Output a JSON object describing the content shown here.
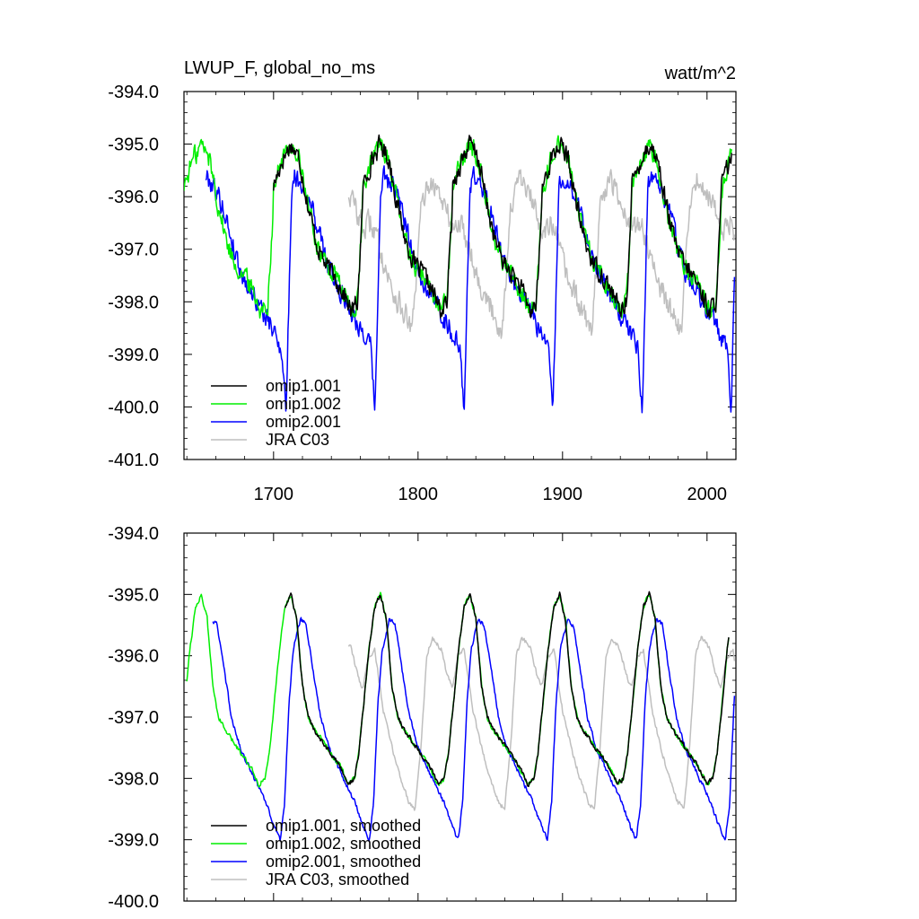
{
  "figure": {
    "title_left": "LWUP_F, global_no_ms",
    "title_right": "watt/m^2"
  },
  "colors": {
    "omip1.001": "#000000",
    "omip1.002": "#00ee00",
    "omip2.001": "#0000ff",
    "JRA C03": "#bfbfbf"
  },
  "chart_data": [
    {
      "type": "line",
      "panel": "top",
      "title": "LWUP_F, global_no_ms",
      "unit_label": "watt/m^2",
      "xlim": [
        1638,
        2020
      ],
      "ylim": [
        -401.0,
        -394.0
      ],
      "xticks": [
        1700,
        1800,
        1900,
        2000
      ],
      "xtick_labels": [
        "1700",
        "1800",
        "1900",
        "2000"
      ],
      "yticks": [
        -394,
        -395,
        -396,
        -397,
        -398,
        -399,
        -400,
        -401
      ],
      "ytick_labels": [
        "-394.0",
        "-395.0",
        "-396.0",
        "-397.0",
        "-398.0",
        "-399.0",
        "-400.0",
        "-401.0"
      ],
      "legend_position": "bottom-left",
      "legend": [
        "omip1.001",
        "omip1.002",
        "omip2.001",
        "JRA C03"
      ],
      "cycle_anchors": [
        {
          "name": "omip1.001",
          "start": 1700,
          "end": 2017,
          "period": 62,
          "offset": 1700,
          "pts": [
            [
              0,
              -395.8
            ],
            [
              6,
              -395.3
            ],
            [
              12,
              -395.0
            ],
            [
              18,
              -395.3
            ],
            [
              24,
              -396.2
            ],
            [
              30,
              -396.9
            ],
            [
              36,
              -397.3
            ],
            [
              42,
              -397.5
            ],
            [
              48,
              -397.8
            ],
            [
              54,
              -398.2
            ],
            [
              58,
              -398.0
            ],
            [
              61,
              -396.6
            ]
          ]
        },
        {
          "name": "omip1.002",
          "start": 1638,
          "end": 2017,
          "period": 62,
          "offset": 1700,
          "pts": [
            [
              0,
              -395.8
            ],
            [
              6,
              -395.3
            ],
            [
              12,
              -395.0
            ],
            [
              18,
              -395.3
            ],
            [
              24,
              -396.2
            ],
            [
              30,
              -396.9
            ],
            [
              36,
              -397.3
            ],
            [
              42,
              -397.5
            ],
            [
              48,
              -397.8
            ],
            [
              54,
              -398.2
            ],
            [
              58,
              -398.0
            ],
            [
              61,
              -396.6
            ]
          ]
        },
        {
          "name": "omip2.001",
          "start": 1653,
          "end": 2019,
          "period": 61.6,
          "offset": 1653,
          "pts": [
            [
              0,
              -395.6
            ],
            [
              6,
              -395.8
            ],
            [
              12,
              -396.2
            ],
            [
              18,
              -396.8
            ],
            [
              24,
              -397.4
            ],
            [
              30,
              -397.7
            ],
            [
              36,
              -398.0
            ],
            [
              42,
              -398.3
            ],
            [
              48,
              -398.6
            ],
            [
              53,
              -398.9
            ],
            [
              56,
              -400.1
            ],
            [
              58,
              -398.0
            ],
            [
              60,
              -395.8
            ]
          ]
        },
        {
          "name": "JRA C03",
          "start": 1752,
          "end": 2019,
          "period": 62,
          "offset": 1700,
          "pts": [
            [
              0,
              -396.6
            ],
            [
              6,
              -396.5
            ],
            [
              12,
              -397.0
            ],
            [
              18,
              -397.6
            ],
            [
              24,
              -398.0
            ],
            [
              30,
              -398.3
            ],
            [
              34,
              -398.6
            ],
            [
              40,
              -396.3
            ],
            [
              45,
              -395.7
            ],
            [
              50,
              -395.8
            ],
            [
              55,
              -396.1
            ],
            [
              61,
              -396.5
            ]
          ]
        }
      ],
      "series": [
        {
          "name": "omip1.001",
          "color": "#000000",
          "noise": 0.28,
          "x": [
            1700,
            1706,
            1712,
            1718,
            1724,
            1730,
            1736,
            1742,
            1748,
            1754,
            1758,
            1761,
            1762
          ],
          "y": [
            -395.8,
            -395.3,
            -395.0,
            -395.3,
            -396.2,
            -396.9,
            -397.3,
            -397.5,
            -397.8,
            -398.2,
            -398.0,
            -396.6,
            -395.8
          ]
        },
        {
          "name": "omip1.002",
          "color": "#00ee00",
          "noise": 0.3,
          "x": [
            1638,
            1644,
            1650,
            1656,
            1662,
            1668,
            1674,
            1680,
            1686,
            1692,
            1696,
            1699
          ],
          "y": [
            -395.3,
            -395.0,
            -395.3,
            -396.2,
            -396.9,
            -397.3,
            -397.5,
            -397.8,
            -398.2,
            -398.0,
            -396.6,
            -395.8
          ]
        },
        {
          "name": "omip2.001",
          "color": "#0000ff",
          "noise": 0.3,
          "x": [
            1653,
            1659,
            1665,
            1671,
            1677,
            1683,
            1689,
            1695,
            1701,
            1706,
            1709,
            1711,
            1713
          ],
          "y": [
            -395.6,
            -395.8,
            -396.2,
            -396.8,
            -397.4,
            -397.7,
            -398.0,
            -398.3,
            -398.6,
            -398.9,
            -400.1,
            -398.0,
            -395.8
          ]
        },
        {
          "name": "JRA C03",
          "color": "#bfbfbf",
          "noise": 0.35,
          "x": [
            1752,
            1758,
            1764,
            1770,
            1776,
            1782,
            1786,
            1792,
            1797,
            1802,
            1807,
            1813
          ],
          "y": [
            -396.6,
            -396.5,
            -397.0,
            -397.6,
            -398.0,
            -398.3,
            -398.6,
            -396.3,
            -395.7,
            -395.8,
            -396.1,
            -396.5
          ]
        }
      ]
    },
    {
      "type": "line",
      "panel": "bottom",
      "xlim": [
        1638,
        2020
      ],
      "ylim": [
        -400.0,
        -394.0
      ],
      "xticks": [
        1700,
        1800,
        1900,
        2000
      ],
      "xtick_labels": [],
      "yticks": [
        -394,
        -395,
        -396,
        -397,
        -398,
        -399,
        -400
      ],
      "ytick_labels": [
        "-394.0",
        "-395.0",
        "-396.0",
        "-397.0",
        "-398.0",
        "-399.0",
        "-400.0"
      ],
      "legend_position": "bottom-left",
      "legend": [
        "omip1.001, smoothed",
        "omip1.002, smoothed",
        "omip2.001, smoothed",
        "JRA C03, smoothed"
      ],
      "cycle_anchors": [
        {
          "name": "omip1.001, smoothed",
          "start": 1708,
          "end": 2015,
          "period": 62,
          "offset": 1700,
          "pts": [
            [
              0,
              -396.9
            ],
            [
              4,
              -395.9
            ],
            [
              8,
              -395.2
            ],
            [
              12,
              -395.0
            ],
            [
              16,
              -395.4
            ],
            [
              20,
              -396.5
            ],
            [
              24,
              -397.0
            ],
            [
              28,
              -397.2
            ],
            [
              34,
              -397.4
            ],
            [
              40,
              -397.6
            ],
            [
              46,
              -397.8
            ],
            [
              52,
              -398.1
            ],
            [
              56,
              -398.0
            ],
            [
              59,
              -397.6
            ],
            [
              61,
              -397.1
            ]
          ]
        },
        {
          "name": "omip1.002, smoothed",
          "start": 1640,
          "end": 2015,
          "period": 62,
          "offset": 1700,
          "pts": [
            [
              0,
              -396.9
            ],
            [
              4,
              -395.9
            ],
            [
              8,
              -395.2
            ],
            [
              12,
              -395.0
            ],
            [
              16,
              -395.4
            ],
            [
              20,
              -396.5
            ],
            [
              24,
              -397.0
            ],
            [
              28,
              -397.2
            ],
            [
              34,
              -397.4
            ],
            [
              40,
              -397.6
            ],
            [
              46,
              -397.8
            ],
            [
              52,
              -398.1
            ],
            [
              56,
              -398.0
            ],
            [
              59,
              -397.6
            ],
            [
              61,
              -397.1
            ]
          ]
        },
        {
          "name": "omip2.001, smoothed",
          "start": 1658,
          "end": 2019,
          "period": 61.6,
          "offset": 1653,
          "pts": [
            [
              0,
              -395.8
            ],
            [
              4,
              -395.4
            ],
            [
              8,
              -395.5
            ],
            [
              12,
              -396.1
            ],
            [
              18,
              -397.0
            ],
            [
              24,
              -397.5
            ],
            [
              30,
              -397.8
            ],
            [
              36,
              -398.1
            ],
            [
              42,
              -398.4
            ],
            [
              48,
              -398.8
            ],
            [
              52,
              -399.0
            ],
            [
              55,
              -398.4
            ],
            [
              58,
              -396.8
            ],
            [
              61,
              -395.9
            ]
          ]
        },
        {
          "name": "JRA C03, smoothed",
          "start": 1752,
          "end": 2019,
          "period": 62,
          "offset": 1700,
          "pts": [
            [
              0,
              -396.5
            ],
            [
              4,
              -396.0
            ],
            [
              8,
              -395.9
            ],
            [
              14,
              -396.9
            ],
            [
              20,
              -397.5
            ],
            [
              26,
              -398.0
            ],
            [
              32,
              -398.4
            ],
            [
              36,
              -398.5
            ],
            [
              40,
              -397.5
            ],
            [
              44,
              -396.0
            ],
            [
              48,
              -395.7
            ],
            [
              54,
              -395.9
            ],
            [
              58,
              -396.3
            ],
            [
              61,
              -396.5
            ]
          ]
        }
      ],
      "series": [
        {
          "name": "omip1.001, smoothed",
          "color": "#000000",
          "noise": 0.06,
          "x": [
            1708,
            1712,
            1716,
            1722,
            1728,
            1734,
            1740,
            1746,
            1752,
            1756,
            1759,
            1761
          ],
          "y": [
            -395.9,
            -395.2,
            -395.0,
            -395.4,
            -396.5,
            -397.0,
            -397.2,
            -397.4,
            -397.6,
            -397.8,
            -398.1,
            -397.1
          ]
        },
        {
          "name": "omip1.002, smoothed",
          "color": "#00ee00",
          "noise": 0.06,
          "x": [
            1640,
            1644,
            1648,
            1652,
            1656,
            1660,
            1664,
            1670,
            1676,
            1682,
            1688,
            1694,
            1698
          ],
          "y": [
            -396.9,
            -395.9,
            -395.2,
            -395.0,
            -395.4,
            -396.5,
            -397.0,
            -397.2,
            -397.4,
            -397.6,
            -397.8,
            -398.1,
            -397.6
          ]
        },
        {
          "name": "omip2.001, smoothed",
          "color": "#0000ff",
          "noise": 0.06,
          "x": [
            1658,
            1661,
            1665,
            1671,
            1677,
            1683,
            1689,
            1695,
            1701,
            1705,
            1708,
            1711,
            1714
          ],
          "y": [
            -395.4,
            -395.5,
            -396.1,
            -397.0,
            -397.5,
            -397.8,
            -398.1,
            -398.4,
            -398.8,
            -399.0,
            -398.4,
            -396.8,
            -395.9
          ]
        },
        {
          "name": "JRA C03, smoothed",
          "color": "#bfbfbf",
          "noise": 0.06,
          "x": [
            1752,
            1756,
            1760,
            1766,
            1772,
            1778,
            1784,
            1788,
            1792,
            1796,
            1800,
            1806,
            1810
          ],
          "y": [
            -396.5,
            -396.0,
            -395.9,
            -396.9,
            -397.5,
            -398.0,
            -398.4,
            -398.5,
            -397.5,
            -396.0,
            -395.7,
            -395.9,
            -396.3
          ]
        }
      ]
    }
  ]
}
